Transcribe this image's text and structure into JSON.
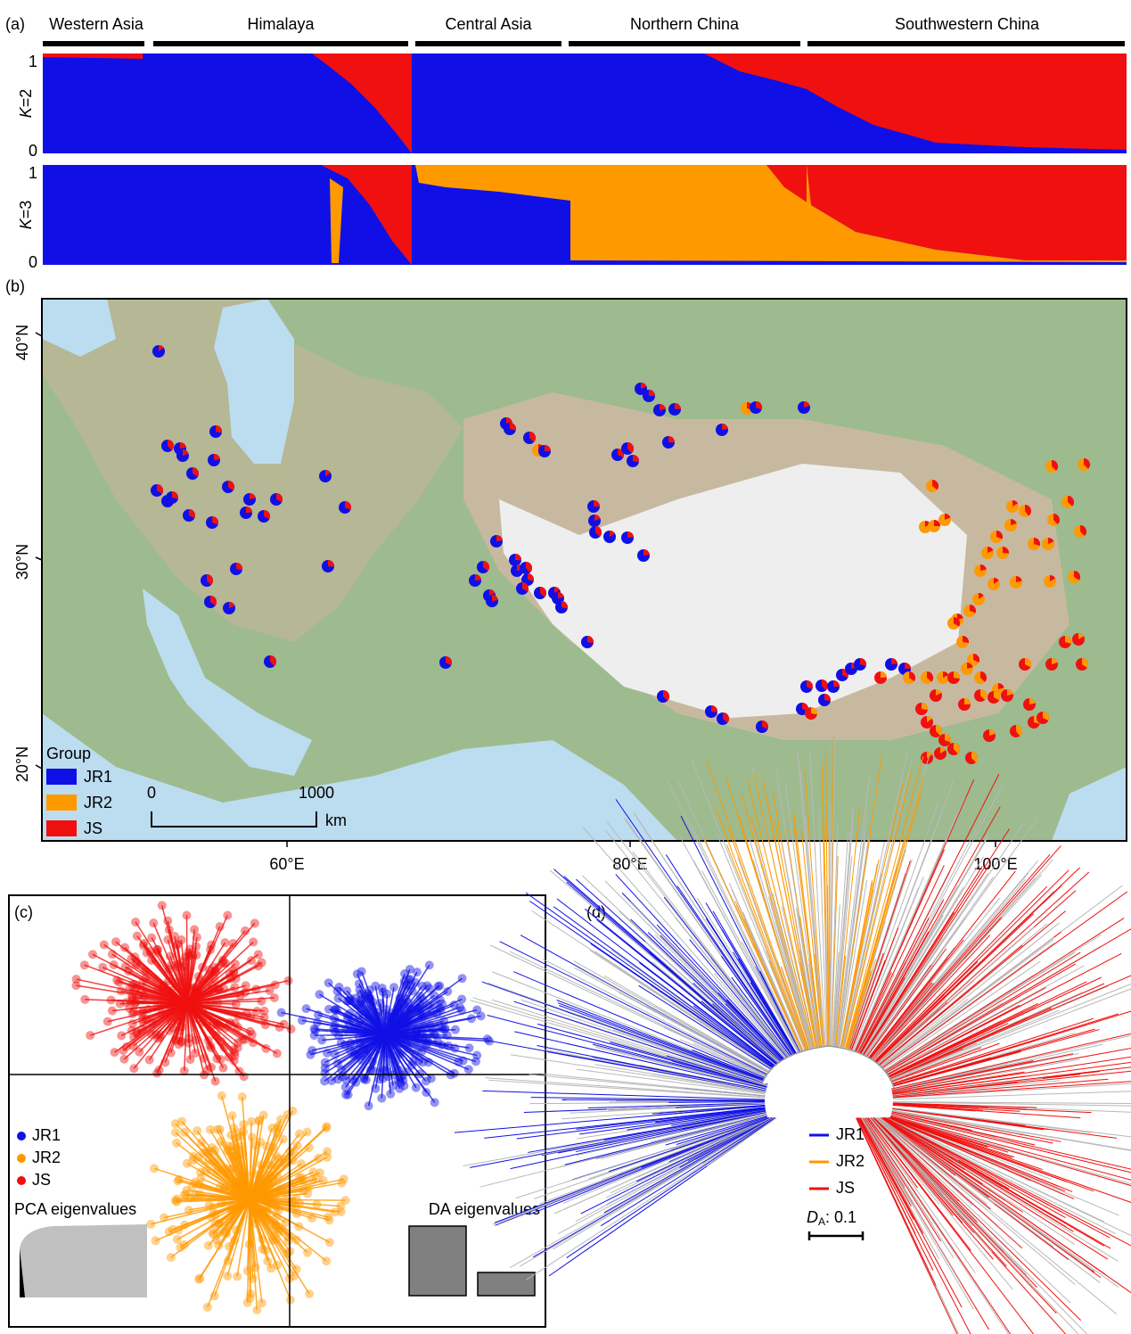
{
  "panel_a": {
    "label": "(a)",
    "regions": [
      "Western Asia",
      "Himalaya",
      "Central Asia",
      "Northern China",
      "Southwestern China"
    ],
    "rows": [
      {
        "k": "K",
        "eq": "=2",
        "tick_top": "1",
        "tick_bottom": "0"
      },
      {
        "k": "K",
        "eq": "=3",
        "tick_top": "1",
        "tick_bottom": "0"
      }
    ]
  },
  "panel_b": {
    "label": "(b)",
    "lat_labels": [
      "40°N",
      "30°N",
      "20°N"
    ],
    "lon_labels": [
      "60°E",
      "80°E",
      "100°E"
    ],
    "legend": {
      "title": "Group",
      "items": [
        "JR1",
        "JR2",
        "JS"
      ]
    },
    "scale": {
      "start": "0",
      "end": "1000",
      "unit": "km"
    }
  },
  "panel_c": {
    "label": "(c)",
    "legend": [
      "JR1",
      "JR2",
      "JS"
    ],
    "pca_label": "PCA eigenvalues",
    "da_label": "DA eigenvalues"
  },
  "panel_d": {
    "label": "(d)",
    "legend": [
      "JR1",
      "JR2",
      "JS"
    ],
    "scale": {
      "symbol": "D",
      "subscript": "A",
      "value": ": 0.1"
    }
  }
}
